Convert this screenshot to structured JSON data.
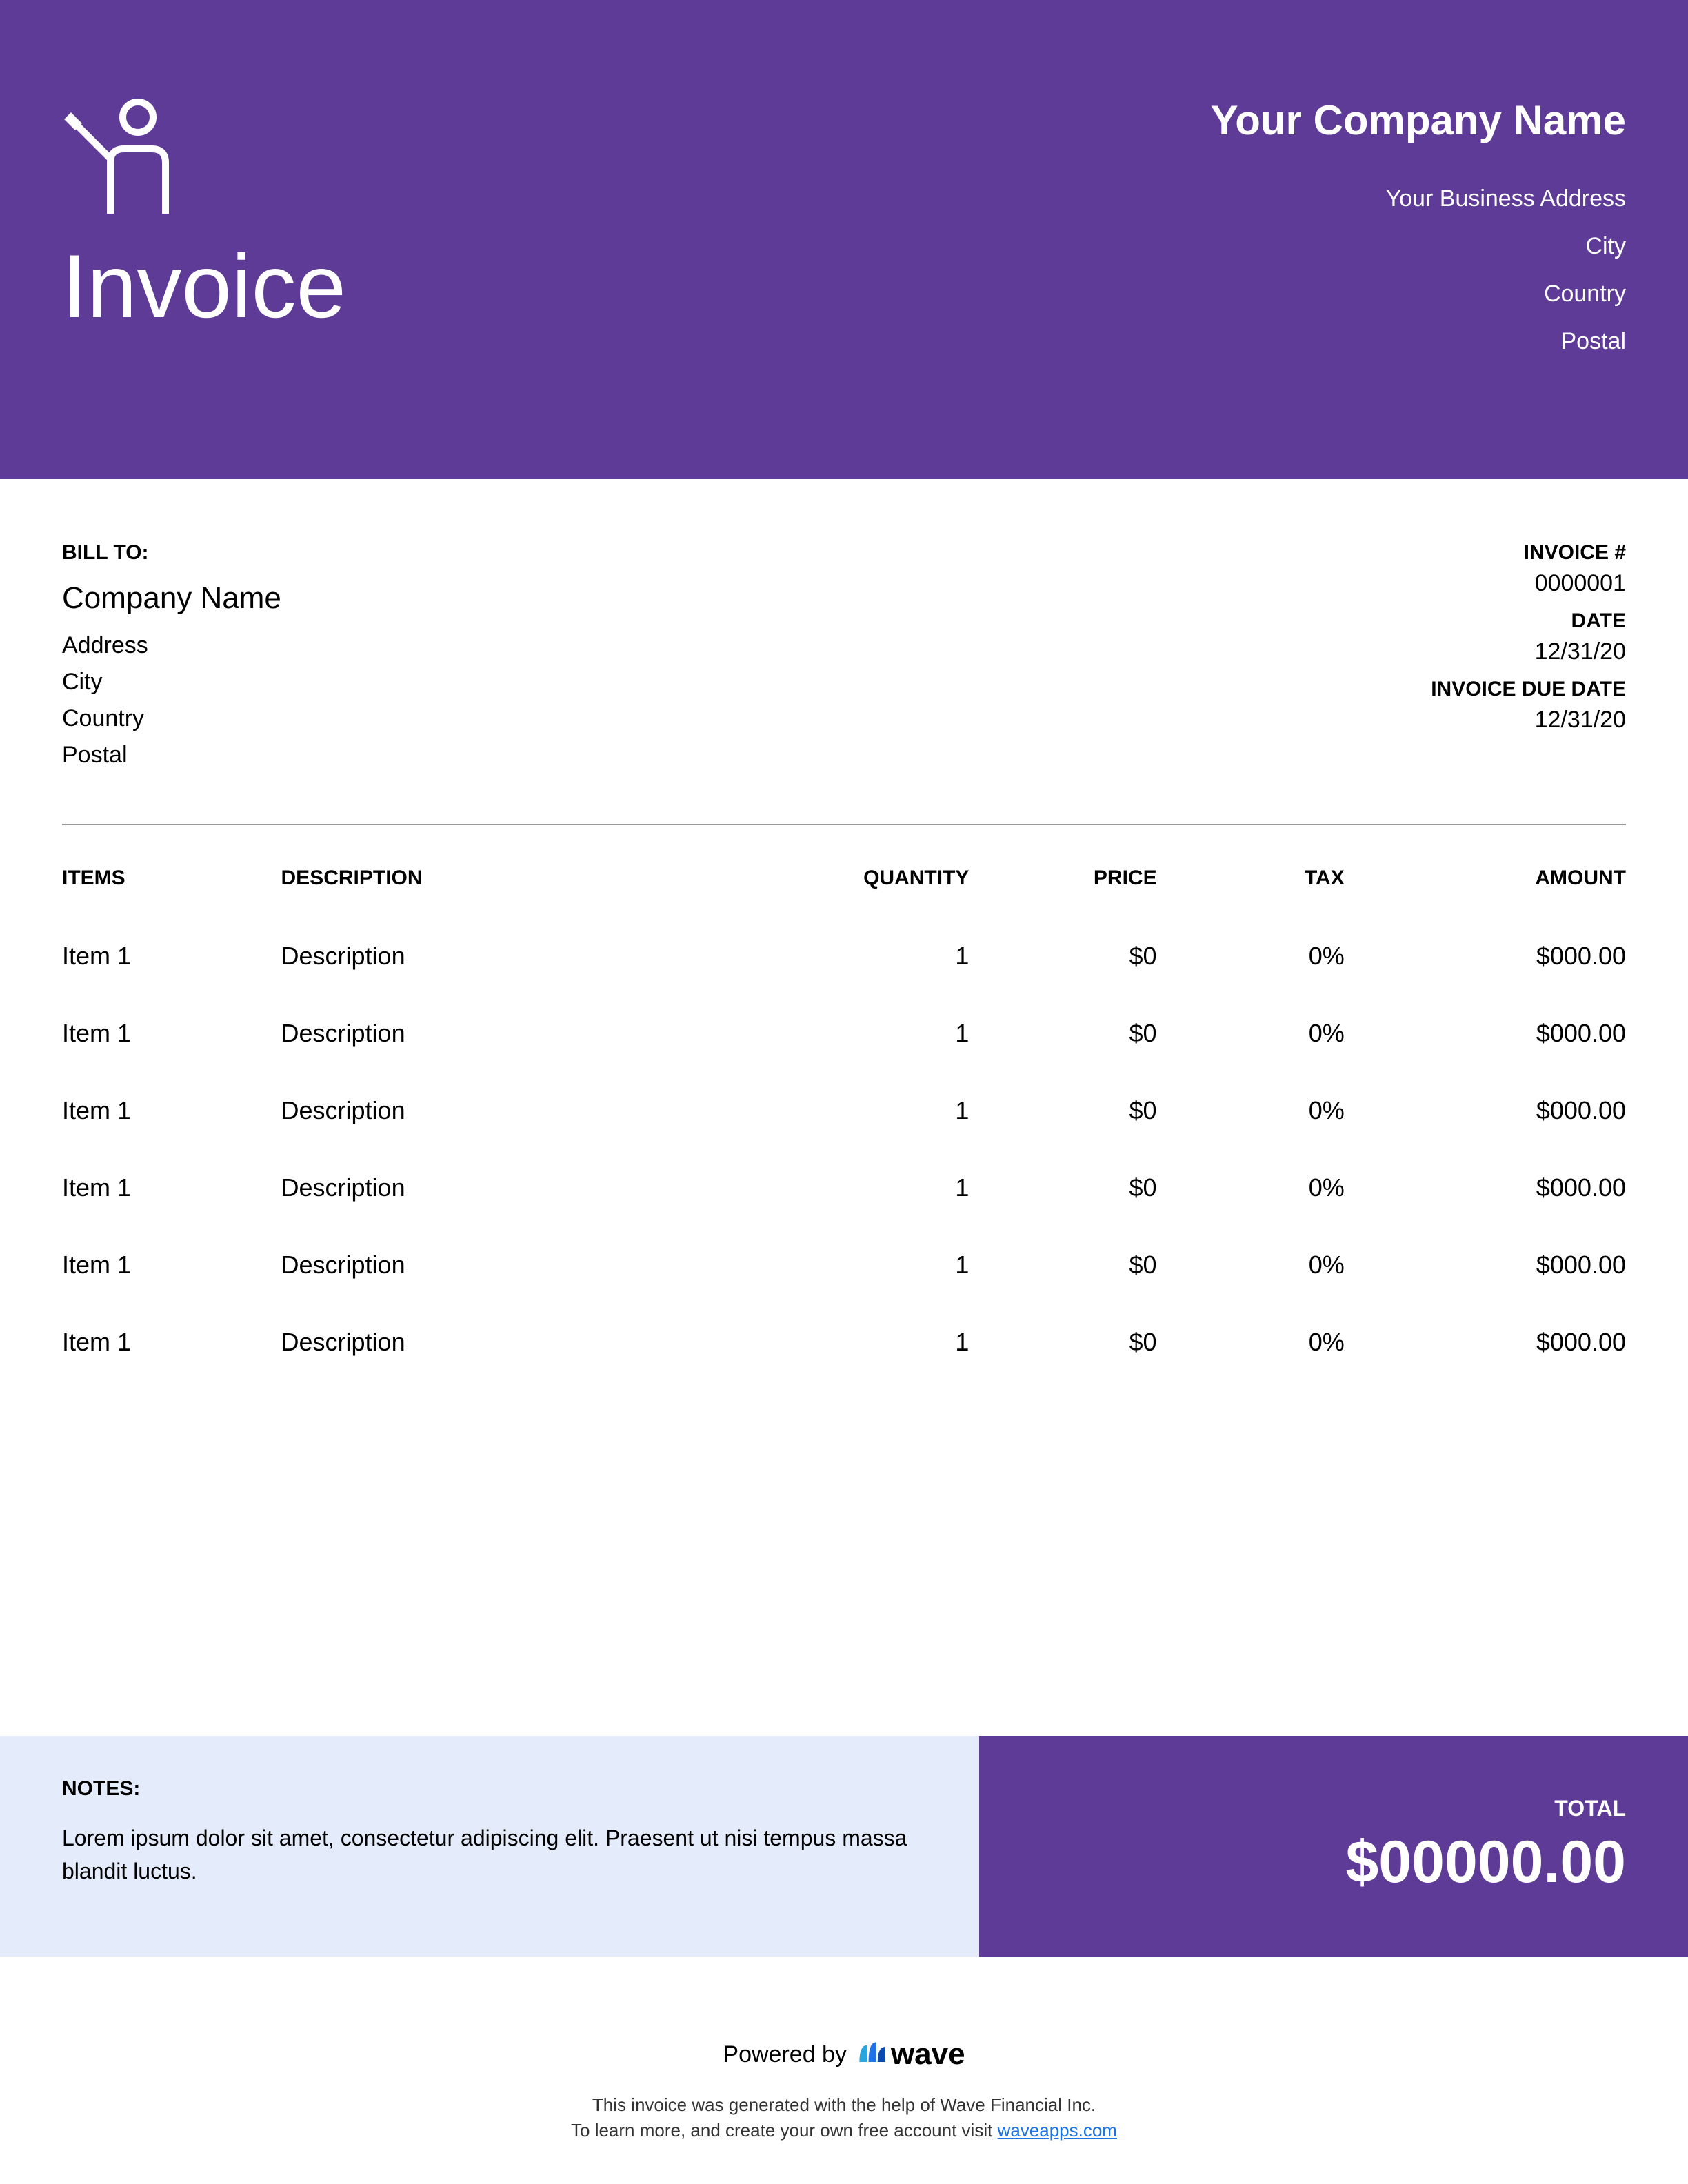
{
  "colors": {
    "primary": "#5d3b97",
    "notes_bg": "#e4ecfb",
    "divider": "#999999",
    "link": "#1a73e8",
    "white": "#ffffff",
    "text": "#000000"
  },
  "header": {
    "title": "Invoice",
    "company": {
      "name": "Your Company Name",
      "address": "Your Business Address",
      "city": "City",
      "country": "Country",
      "postal": "Postal"
    }
  },
  "bill_to": {
    "label": "BILL TO:",
    "company": "Company Name",
    "address": "Address",
    "city": "City",
    "country": "Country",
    "postal": "Postal"
  },
  "meta": {
    "invoice_num_label": "INVOICE #",
    "invoice_num": "0000001",
    "date_label": "DATE",
    "date": "12/31/20",
    "due_label": "INVOICE DUE DATE",
    "due": "12/31/20"
  },
  "table": {
    "headers": {
      "items": "ITEMS",
      "description": "DESCRIPTION",
      "quantity": "QUANTITY",
      "price": "PRICE",
      "tax": "TAX",
      "amount": "AMOUNT"
    },
    "rows": [
      {
        "item": "Item 1",
        "desc": "Description",
        "qty": "1",
        "price": "$0",
        "tax": "0%",
        "amount": "$000.00"
      },
      {
        "item": "Item 1",
        "desc": "Description",
        "qty": "1",
        "price": "$0",
        "tax": "0%",
        "amount": "$000.00"
      },
      {
        "item": "Item 1",
        "desc": "Description",
        "qty": "1",
        "price": "$0",
        "tax": "0%",
        "amount": "$000.00"
      },
      {
        "item": "Item 1",
        "desc": "Description",
        "qty": "1",
        "price": "$0",
        "tax": "0%",
        "amount": "$000.00"
      },
      {
        "item": "Item 1",
        "desc": "Description",
        "qty": "1",
        "price": "$0",
        "tax": "0%",
        "amount": "$000.00"
      },
      {
        "item": "Item 1",
        "desc": "Description",
        "qty": "1",
        "price": "$0",
        "tax": "0%",
        "amount": "$000.00"
      }
    ]
  },
  "notes": {
    "label": "NOTES:",
    "text": "Lorem ipsum dolor sit amet, consectetur adipiscing elit. Praesent ut nisi tempus massa blandit luctus."
  },
  "total": {
    "label": "TOTAL",
    "value": "$00000.00"
  },
  "footer": {
    "powered_by": "Powered by",
    "brand": "wave",
    "line1": "This invoice was generated with the help of Wave Financial Inc.",
    "line2_prefix": "To learn more, and create your own free account visit ",
    "link": "waveapps.com"
  }
}
